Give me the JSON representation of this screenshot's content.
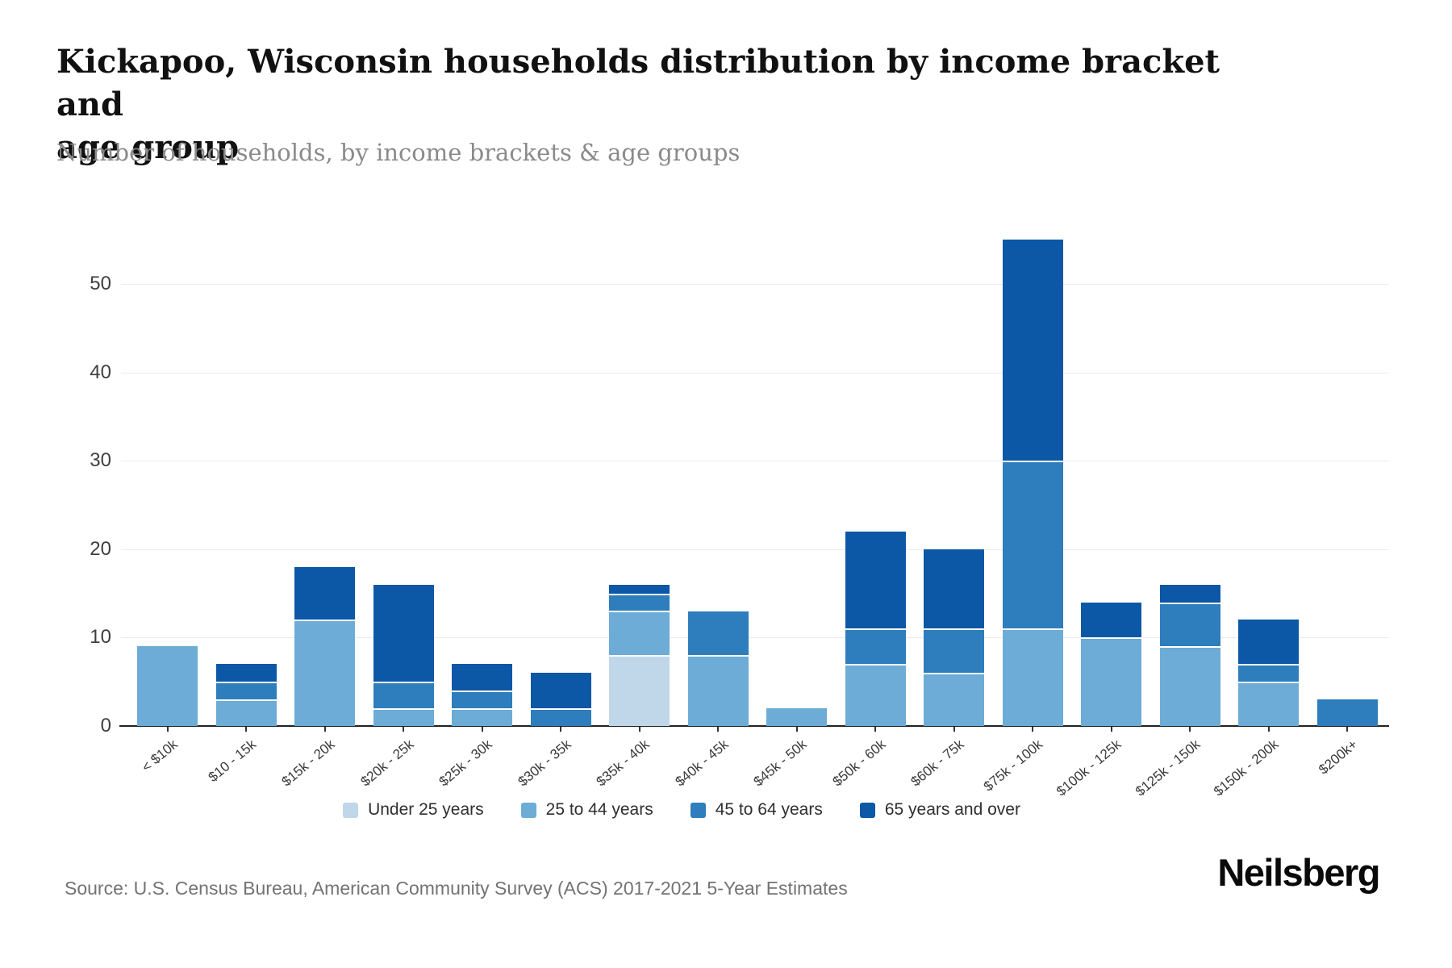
{
  "chart_data": {
    "type": "bar",
    "stacked": true,
    "title": "Kickapoo, Wisconsin households distribution by income bracket and\nage group",
    "subtitle": "Number of households, by income brackets & age groups",
    "categories": [
      "< $10k",
      "$10 - 15k",
      "$15k - 20k",
      "$20k - 25k",
      "$25k - 30k",
      "$30k - 35k",
      "$35k - 40k",
      "$40k - 45k",
      "$45k - 50k",
      "$50k - 60k",
      "$60k - 75k",
      "$75k - 100k",
      "$100k - 125k",
      "$125k - 150k",
      "$150k - 200k",
      "$200k+"
    ],
    "series": [
      {
        "name": "Under 25 years",
        "color": "#bfd7e9",
        "values": [
          0,
          0,
          0,
          0,
          0,
          0,
          8,
          0,
          0,
          0,
          0,
          0,
          0,
          0,
          0,
          0
        ]
      },
      {
        "name": "25 to 44 years",
        "color": "#6cacd6",
        "values": [
          9,
          3,
          12,
          2,
          2,
          0,
          5,
          8,
          2,
          7,
          6,
          11,
          10,
          9,
          5,
          0
        ]
      },
      {
        "name": "45 to 64 years",
        "color": "#2e7dbc",
        "values": [
          0,
          2,
          0,
          3,
          2,
          2,
          2,
          5,
          0,
          4,
          5,
          19,
          0,
          5,
          2,
          3
        ]
      },
      {
        "name": "65 years and over",
        "color": "#0c57a6",
        "values": [
          0,
          2,
          6,
          11,
          3,
          4,
          1,
          0,
          0,
          11,
          9,
          25,
          4,
          2,
          5,
          0
        ]
      }
    ],
    "totals": [
      9,
      7,
      18,
      16,
      7,
      6,
      16,
      13,
      2,
      22,
      20,
      55,
      14,
      16,
      12,
      3
    ],
    "y_ticks": [
      0,
      10,
      20,
      30,
      40,
      50
    ],
    "ylim": [
      0,
      58
    ],
    "xlabel": "",
    "ylabel": "",
    "grid": true,
    "legend_position": "bottom"
  },
  "footer": {
    "source": "Source: U.S. Census Bureau, American Community Survey (ACS) 2017-2021 5-Year Estimates",
    "logo": "Neilsberg"
  }
}
